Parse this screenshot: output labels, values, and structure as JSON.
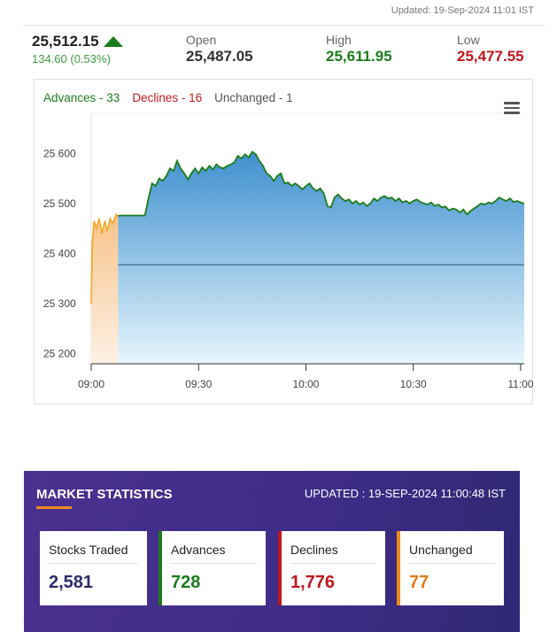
{
  "header": {
    "updated": "Updated: 19-Sep-2024 11:01 IST"
  },
  "quote": {
    "last": "25,512.15",
    "change": "134.60 (0.53%)",
    "open_label": "Open",
    "open": "25,487.05",
    "high_label": "High",
    "high": "25,611.95",
    "low_label": "Low",
    "low": "25,477.55"
  },
  "breadth": {
    "advances": "Advances - 33",
    "declines": "Declines - 16",
    "unchanged": "Unchanged - 1"
  },
  "chart_data": {
    "type": "area",
    "y_ticks": [
      25200,
      25300,
      25400,
      25500,
      25600
    ],
    "y_tick_labels": [
      "25 200",
      "25 300",
      "25 400",
      "25 500",
      "25 600"
    ],
    "ylim": [
      25180,
      25680
    ],
    "x_tick_labels": [
      "09:00",
      "09:30",
      "10:00",
      "10:30",
      "11:00"
    ],
    "x_ticks": [
      0,
      30,
      60,
      90,
      120
    ],
    "xlim": [
      0,
      121
    ],
    "previous_close": 25377.55,
    "colors": {
      "pre_open": "#f5a623",
      "line": "#1b7c1b",
      "fill_top": "#3f8fcf",
      "fill_bottom": "#e6f6fc",
      "baseline": "#1a5a6e"
    },
    "pre_open": [
      [
        0,
        25300
      ],
      [
        0.3,
        25420
      ],
      [
        0.8,
        25465
      ],
      [
        1.5,
        25450
      ],
      [
        2.2,
        25470
      ],
      [
        3,
        25440
      ],
      [
        3.8,
        25465
      ],
      [
        4.5,
        25445
      ],
      [
        5.3,
        25470
      ],
      [
        6,
        25460
      ],
      [
        7,
        25478
      ],
      [
        7.5,
        25475
      ]
    ],
    "series": [
      [
        7.5,
        25475
      ],
      [
        8,
        25476
      ],
      [
        12,
        25476
      ],
      [
        15,
        25476
      ],
      [
        16,
        25510
      ],
      [
        17,
        25540
      ],
      [
        18,
        25535
      ],
      [
        19,
        25550
      ],
      [
        20,
        25545
      ],
      [
        21,
        25555
      ],
      [
        22,
        25570
      ],
      [
        23,
        25565
      ],
      [
        24,
        25585
      ],
      [
        25,
        25570
      ],
      [
        26,
        25560
      ],
      [
        27,
        25548
      ],
      [
        28,
        25560
      ],
      [
        29,
        25570
      ],
      [
        30,
        25560
      ],
      [
        31,
        25572
      ],
      [
        32,
        25565
      ],
      [
        33,
        25575
      ],
      [
        34,
        25568
      ],
      [
        35,
        25578
      ],
      [
        36,
        25572
      ],
      [
        37,
        25570
      ],
      [
        38,
        25575
      ],
      [
        39,
        25578
      ],
      [
        40,
        25582
      ],
      [
        41,
        25595
      ],
      [
        42,
        25590
      ],
      [
        43,
        25598
      ],
      [
        44,
        25592
      ],
      [
        45,
        25603
      ],
      [
        46,
        25598
      ],
      [
        47,
        25585
      ],
      [
        48,
        25575
      ],
      [
        49,
        25560
      ],
      [
        50,
        25555
      ],
      [
        51,
        25545
      ],
      [
        52,
        25555
      ],
      [
        53,
        25560
      ],
      [
        54,
        25540
      ],
      [
        55,
        25542
      ],
      [
        56,
        25535
      ],
      [
        57,
        25540
      ],
      [
        58,
        25535
      ],
      [
        59,
        25528
      ],
      [
        60,
        25535
      ],
      [
        61,
        25540
      ],
      [
        62,
        25530
      ],
      [
        63,
        25525
      ],
      [
        64,
        25530
      ],
      [
        65,
        25520
      ],
      [
        66,
        25495
      ],
      [
        67,
        25492
      ],
      [
        68,
        25512
      ],
      [
        69,
        25518
      ],
      [
        70,
        25510
      ],
      [
        71,
        25505
      ],
      [
        72,
        25508
      ],
      [
        73,
        25500
      ],
      [
        74,
        25505
      ],
      [
        75,
        25498
      ],
      [
        76,
        25502
      ],
      [
        77,
        25495
      ],
      [
        78,
        25500
      ],
      [
        79,
        25510
      ],
      [
        80,
        25505
      ],
      [
        81,
        25512
      ],
      [
        82,
        25515
      ],
      [
        83,
        25510
      ],
      [
        84,
        25512
      ],
      [
        85,
        25505
      ],
      [
        86,
        25510
      ],
      [
        87,
        25502
      ],
      [
        88,
        25505
      ],
      [
        89,
        25500
      ],
      [
        90,
        25505
      ],
      [
        91,
        25508
      ],
      [
        92,
        25503
      ],
      [
        93,
        25500
      ],
      [
        94,
        25498
      ],
      [
        95,
        25502
      ],
      [
        96,
        25495
      ],
      [
        97,
        25498
      ],
      [
        98,
        25492
      ],
      [
        99,
        25494
      ],
      [
        100,
        25486
      ],
      [
        101,
        25490
      ],
      [
        102,
        25488
      ],
      [
        103,
        25482
      ],
      [
        104,
        25488
      ],
      [
        105,
        25478
      ],
      [
        106,
        25485
      ],
      [
        107,
        25490
      ],
      [
        108,
        25495
      ],
      [
        109,
        25500
      ],
      [
        110,
        25498
      ],
      [
        111,
        25502
      ],
      [
        112,
        25500
      ],
      [
        113,
        25505
      ],
      [
        114,
        25512
      ],
      [
        115,
        25508
      ],
      [
        116,
        25505
      ],
      [
        117,
        25510
      ],
      [
        118,
        25503
      ],
      [
        119,
        25505
      ],
      [
        120,
        25502
      ],
      [
        121,
        25500
      ]
    ]
  },
  "stats": {
    "title": "MARKET STATISTICS",
    "updated": "UPDATED : 19-SEP-2024 11:00:48 IST",
    "cards": [
      {
        "label": "Stocks Traded",
        "value": "2,581"
      },
      {
        "label": "Advances",
        "value": "728"
      },
      {
        "label": "Declines",
        "value": "1,776"
      },
      {
        "label": "Unchanged",
        "value": "77"
      }
    ]
  }
}
